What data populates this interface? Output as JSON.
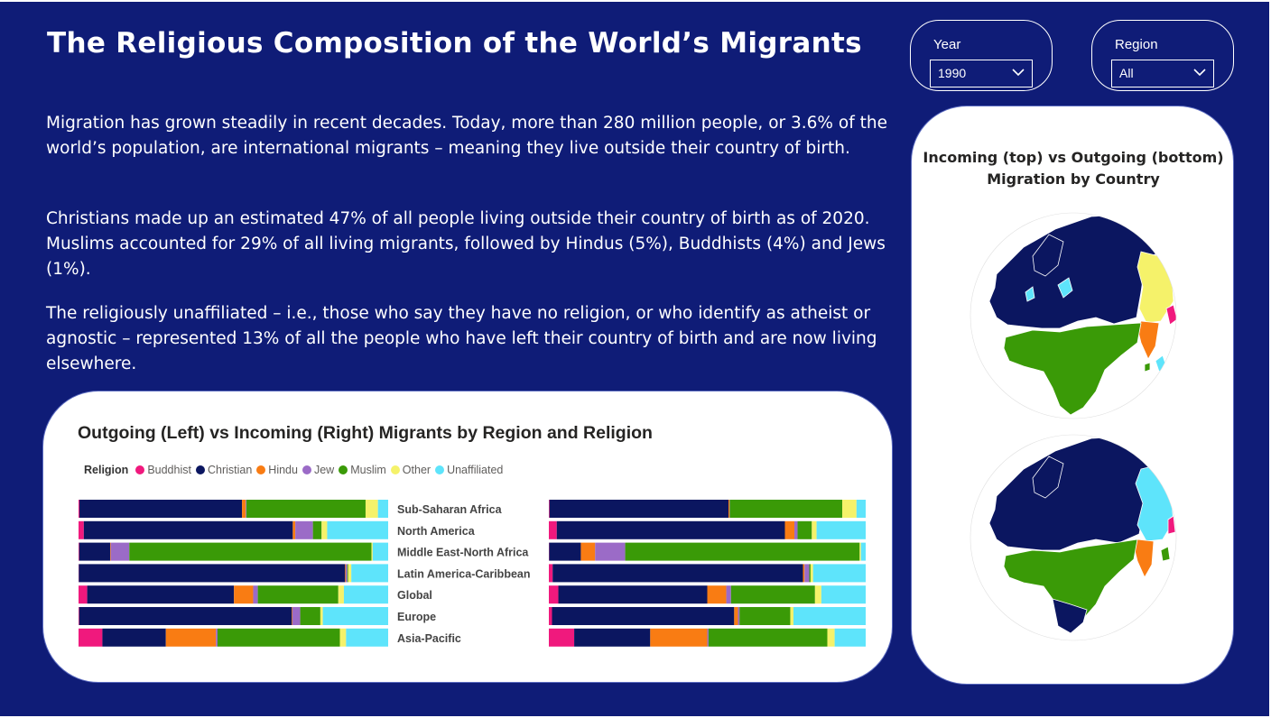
{
  "title": "The Religious Composition of the World’s Migrants",
  "paragraphs": [
    "Migration has grown steadily in recent decades. Today, more than 280 million people, or 3.6% of the world’s population, are international migrants – meaning they live outside their country of birth.",
    "Christians made up an estimated 47% of all people living outside their country of birth as of 2020. Muslims accounted for 29% of all living migrants, followed by Hindus (5%), Buddhists (4%) and Jews (1%).",
    "The religiously unaffiliated – i.e., those who say they have no religion, or who identify as atheist or agnostic – represented 13% of all the people who have left their country of birth and are now living elsewhere."
  ],
  "filters": {
    "year": {
      "label": "Year",
      "value": "1990"
    },
    "region": {
      "label": "Region",
      "value": "All"
    }
  },
  "map": {
    "title": "Incoming (top) vs Outgoing (bottom) Migration by Country"
  },
  "colors": {
    "Buddhist": "#f0197d",
    "Christian": "#0b1660",
    "Hindu": "#f97c13",
    "Jew": "#9b6bc7",
    "Muslim": "#3a9a07",
    "Other": "#f5f26a",
    "Unaffiliated": "#5ee4fb",
    "background": "#0f1c77"
  },
  "chart_data": {
    "type": "bar",
    "orientation": "horizontal",
    "stacked": "100%",
    "title": "Outgoing (Left) vs Incoming (Right) Migrants by Region and Religion",
    "legend_title": "Religion",
    "legend_position": "top-left",
    "categories": [
      "Sub-Saharan Africa",
      "North America",
      "Middle East-North Africa",
      "Latin America-Caribbean",
      "Global",
      "Europe",
      "Asia-Pacific"
    ],
    "religions": [
      "Buddhist",
      "Christian",
      "Hindu",
      "Jew",
      "Muslim",
      "Other",
      "Unaffiliated"
    ],
    "outgoing": {
      "Sub-Saharan Africa": [
        0.3,
        52.5,
        1.2,
        0.2,
        38.5,
        4.0,
        3.3
      ],
      "North America": [
        1.7,
        67.5,
        0.8,
        5.7,
        2.8,
        1.8,
        19.7
      ],
      "Middle East-North Africa": [
        0.2,
        10.0,
        0.2,
        6.0,
        78.2,
        0.4,
        5.0
      ],
      "Latin America-Caribbean": [
        0.1,
        86.0,
        0.2,
        0.5,
        0.3,
        1.0,
        11.9
      ],
      "Global": [
        2.8,
        47.4,
        6.2,
        1.5,
        26.0,
        1.8,
        14.3
      ],
      "Europe": [
        0.2,
        68.7,
        0.2,
        2.5,
        6.5,
        0.8,
        21.1
      ],
      "Asia-Pacific": [
        7.7,
        20.5,
        16.2,
        0.5,
        39.5,
        2.0,
        13.6
      ]
    },
    "incoming": {
      "Sub-Saharan Africa": [
        0.2,
        56.5,
        0.3,
        0.1,
        35.5,
        4.5,
        2.9
      ],
      "North America": [
        2.5,
        72.0,
        3.0,
        1.0,
        4.5,
        1.5,
        15.5
      ],
      "Middle East-North Africa": [
        0.1,
        10.0,
        4.5,
        9.5,
        74.0,
        0.4,
        1.5
      ],
      "Latin America-Caribbean": [
        1.2,
        79.0,
        0.5,
        1.5,
        0.4,
        0.8,
        16.6
      ],
      "Global": [
        3.0,
        47.0,
        6.0,
        1.5,
        26.5,
        2.0,
        14.0
      ],
      "Europe": [
        1.0,
        57.5,
        1.2,
        0.5,
        16.0,
        1.0,
        22.8
      ],
      "Asia-Pacific": [
        8.0,
        24.0,
        18.0,
        0.4,
        37.5,
        2.3,
        9.8
      ]
    }
  }
}
